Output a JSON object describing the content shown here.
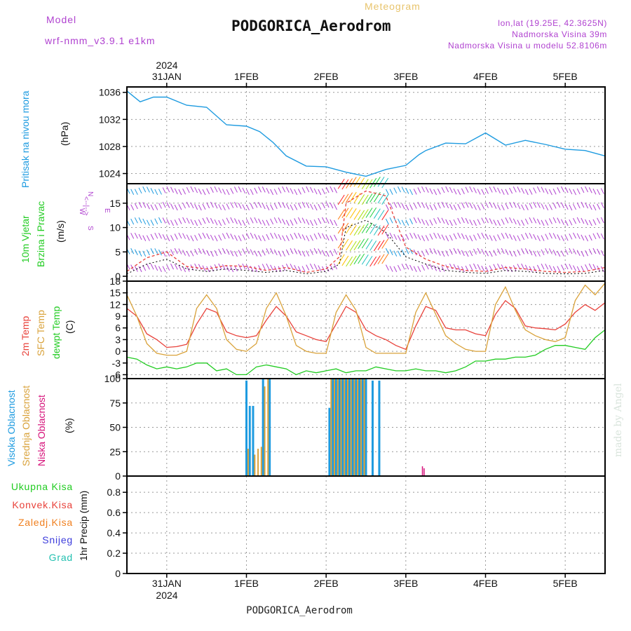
{
  "header": {
    "model_label": "Model",
    "model_name": "wrf-nmm_v3.9.1  e1km",
    "meteogram_label": "Meteogram",
    "station": "PODGORICA_Aerodrom",
    "lonlat": "lon,lat (19.25E, 42.3625N)",
    "altitude": "Nadmorska Visina 39m",
    "model_altitude": "Nadmorska Visina u modelu 52.8106m",
    "footer_station": "PODGORICA_Aerodrom",
    "credit": "made by Angel"
  },
  "colors": {
    "pressure": "#1e9be0",
    "temp2m": "#e8413a",
    "sfc": "#d9a23a",
    "dewpt": "#22cc22",
    "high_cloud": "#1e9be0",
    "mid_cloud": "#d9a23a",
    "low_cloud": "#d6127a",
    "wind_label": "#22aa22",
    "purple": "#b042d0",
    "conv": "#e8413a",
    "frozen": "#f08020",
    "snow": "#3c3cdc",
    "hail": "#22c0b0"
  },
  "time_axis": {
    "top_labels": [
      "31JAN",
      "1FEB",
      "2FEB",
      "3FEB",
      "4FEB",
      "5FEB"
    ],
    "top_year": "2024",
    "bottom_labels": [
      "31JAN",
      "1FEB",
      "2FEB",
      "3FEB",
      "4FEB",
      "5FEB"
    ],
    "bottom_year": "2024"
  },
  "wind_legend": {
    "n": "N",
    "w": "W",
    "e": "E",
    "s": "S",
    "arrows": "<--|-->"
  },
  "chart_data": [
    {
      "type": "line",
      "ylabel_1": "Pritisak na nivou mora",
      "ylabel_2": "(hPa)",
      "yticks": [
        "1036",
        "1032",
        "1028",
        "1024"
      ],
      "ylim": [
        1022.5,
        1036.8
      ],
      "x": [
        0,
        4,
        8,
        12,
        18,
        24,
        30,
        36,
        40,
        44,
        48,
        54,
        60,
        66,
        72,
        78,
        84,
        88,
        90,
        96,
        102,
        108,
        114,
        120,
        126,
        132,
        138,
        144
      ],
      "series": [
        {
          "name": "",
          "values": [
            1036.2,
            1034.6,
            1035.3,
            1035.3,
            1034.1,
            1033.8,
            1031.2,
            1031.0,
            1030.2,
            1028.6,
            1026.6,
            1025.1,
            1025.0,
            1024.2,
            1023.6,
            1024.6,
            1025.2,
            1026.8,
            1027.4,
            1028.5,
            1028.4,
            1030.0,
            1028.2,
            1028.9,
            1028.3,
            1027.6,
            1027.4,
            1026.6
          ]
        }
      ]
    },
    {
      "type": "line",
      "ylabel_1": "10m Vjetar",
      "ylabel_2": "Brzina i Pravac",
      "ylabel_3": "(m/s)",
      "yticks": [
        "15",
        "10",
        "5",
        "0"
      ],
      "ylim": [
        -1,
        19
      ],
      "x": [
        0,
        6,
        12,
        18,
        24,
        30,
        36,
        42,
        48,
        54,
        60,
        64,
        66,
        72,
        78,
        84,
        90,
        96,
        102,
        108,
        114,
        120,
        126,
        132,
        138,
        144
      ],
      "series": [
        {
          "name": "",
          "values": [
            1.0,
            3.8,
            5.0,
            2.0,
            1.5,
            2.2,
            2.0,
            1.2,
            1.8,
            0.8,
            1.5,
            4.0,
            15.0,
            17.5,
            16.5,
            6.0,
            3.5,
            2.0,
            1.2,
            1.0,
            1.8,
            1.5,
            1.0,
            0.8,
            1.0,
            1.8
          ]
        },
        {
          "name": "",
          "values": [
            0.5,
            2.5,
            3.5,
            1.5,
            1.0,
            1.5,
            1.2,
            0.8,
            1.2,
            0.5,
            1.0,
            2.5,
            10.0,
            11.5,
            9.0,
            4.0,
            2.5,
            1.2,
            0.8,
            0.6,
            1.2,
            1.0,
            0.6,
            0.5,
            0.6,
            1.2
          ]
        }
      ]
    },
    {
      "type": "line",
      "ylabel_1": "2m Temp",
      "ylabel_2": "SFC Temp",
      "ylabel_3": "dewpt Temp",
      "ylabel_4": "(C)",
      "yticks": [
        "18",
        "15",
        "12",
        "9",
        "6",
        "3",
        "0",
        "-3",
        "-6"
      ],
      "ylim": [
        -7,
        18
      ],
      "x": [
        0,
        3,
        6,
        9,
        12,
        15,
        18,
        21,
        24,
        27,
        30,
        33,
        36,
        39,
        42,
        45,
        48,
        51,
        54,
        57,
        60,
        63,
        66,
        69,
        72,
        75,
        78,
        81,
        84,
        87,
        90,
        93,
        96,
        99,
        102,
        105,
        108,
        111,
        114,
        117,
        120,
        123,
        126,
        129,
        132,
        135,
        138,
        141,
        144
      ],
      "series": [
        {
          "name": "",
          "values": [
            11.0,
            9.0,
            4.5,
            3.0,
            1.0,
            1.2,
            1.8,
            7.0,
            11.0,
            10.0,
            5.0,
            4.0,
            3.5,
            4.0,
            8.0,
            11.5,
            9.0,
            5.0,
            4.0,
            3.0,
            2.5,
            7.0,
            11.5,
            10.0,
            5.5,
            4.0,
            3.0,
            1.5,
            0.5,
            6.5,
            11.5,
            10.5,
            6.0,
            5.5,
            5.5,
            4.5,
            4.0,
            9.5,
            13.0,
            11.0,
            6.5,
            6.0,
            5.8,
            5.5,
            7.0,
            10.0,
            12.0,
            10.5,
            12.5
          ]
        },
        {
          "name": "",
          "values": [
            14.5,
            9.0,
            2.0,
            -0.5,
            -1.0,
            -1.0,
            0.0,
            11.0,
            14.5,
            11.0,
            3.0,
            0.5,
            0.0,
            2.0,
            11.0,
            15.0,
            9.0,
            1.5,
            0.0,
            -0.5,
            -0.5,
            10.0,
            14.5,
            10.5,
            1.0,
            -0.5,
            -0.5,
            -0.5,
            -0.5,
            10.0,
            15.0,
            9.5,
            4.0,
            2.0,
            0.5,
            0.0,
            0.0,
            12.0,
            16.5,
            10.5,
            5.5,
            4.0,
            3.0,
            2.5,
            3.5,
            13.0,
            17.0,
            14.5,
            17.5
          ]
        },
        {
          "name": "",
          "values": [
            -1.5,
            -2.0,
            -3.5,
            -4.5,
            -4.0,
            -4.5,
            -4.0,
            -3.0,
            -3.0,
            -5.0,
            -4.5,
            -6.0,
            -6.0,
            -4.0,
            -3.5,
            -4.0,
            -4.5,
            -6.0,
            -5.0,
            -5.5,
            -5.0,
            -4.5,
            -5.5,
            -5.0,
            -5.0,
            -4.0,
            -4.5,
            -5.0,
            -5.0,
            -4.5,
            -5.0,
            -5.0,
            -5.5,
            -5.0,
            -4.0,
            -2.5,
            -2.5,
            -2.0,
            -2.0,
            -1.5,
            -1.5,
            -1.0,
            0.5,
            1.5,
            1.5,
            1.0,
            0.5,
            3.5,
            5.5
          ]
        }
      ]
    },
    {
      "type": "bar",
      "ylabel_1": "Visoka Oblacnost",
      "ylabel_2": "Srednja Oblacnost",
      "ylabel_3": "Niska Oblacnost",
      "ylabel_4": "(%)",
      "yticks": [
        "100",
        "75",
        "50",
        "25",
        "0"
      ],
      "ylim": [
        0,
        100
      ],
      "series": [
        {
          "name": "",
          "x": [
            36.0,
            37.0,
            38.0,
            41.0,
            43.0,
            61.0,
            62.0,
            63.0,
            64.0,
            65.0,
            66.0,
            67.0,
            68.0,
            69.0,
            70.0,
            71.0,
            72.0,
            74.0,
            76.0
          ],
          "values": [
            98,
            72,
            72,
            100,
            100,
            70,
            100,
            100,
            100,
            100,
            100,
            100,
            100,
            100,
            100,
            100,
            100,
            98,
            98
          ]
        },
        {
          "name": "",
          "x": [
            36.5,
            38.5,
            39.5,
            40.5,
            41.5,
            42.5,
            61.5,
            62.5,
            63.5,
            64.5,
            65.5,
            66.5,
            67.5,
            68.5,
            69.5,
            70.5,
            71.5
          ],
          "values": [
            28,
            22,
            28,
            30,
            92,
            100,
            100,
            100,
            100,
            100,
            100,
            100,
            100,
            100,
            100,
            100,
            100
          ]
        },
        {
          "name": "",
          "x": [
            89.0,
            89.5
          ],
          "values": [
            10,
            8
          ]
        }
      ]
    },
    {
      "type": "line",
      "ylabel_1": "1hr Precip (mm)",
      "legend": [
        "Ukupna Kisa",
        "Konvek.Kisa",
        "Zaledj.Kisa",
        "Snijeg",
        "Grad"
      ],
      "yticks": [
        "0.8",
        "0.6",
        "0.4",
        "0.2",
        "0"
      ],
      "ylim": [
        0,
        0.96
      ],
      "x": [
        0,
        144
      ],
      "series": [
        {
          "name": "Ukupna Kisa",
          "values": [
            0,
            0
          ]
        }
      ]
    }
  ]
}
